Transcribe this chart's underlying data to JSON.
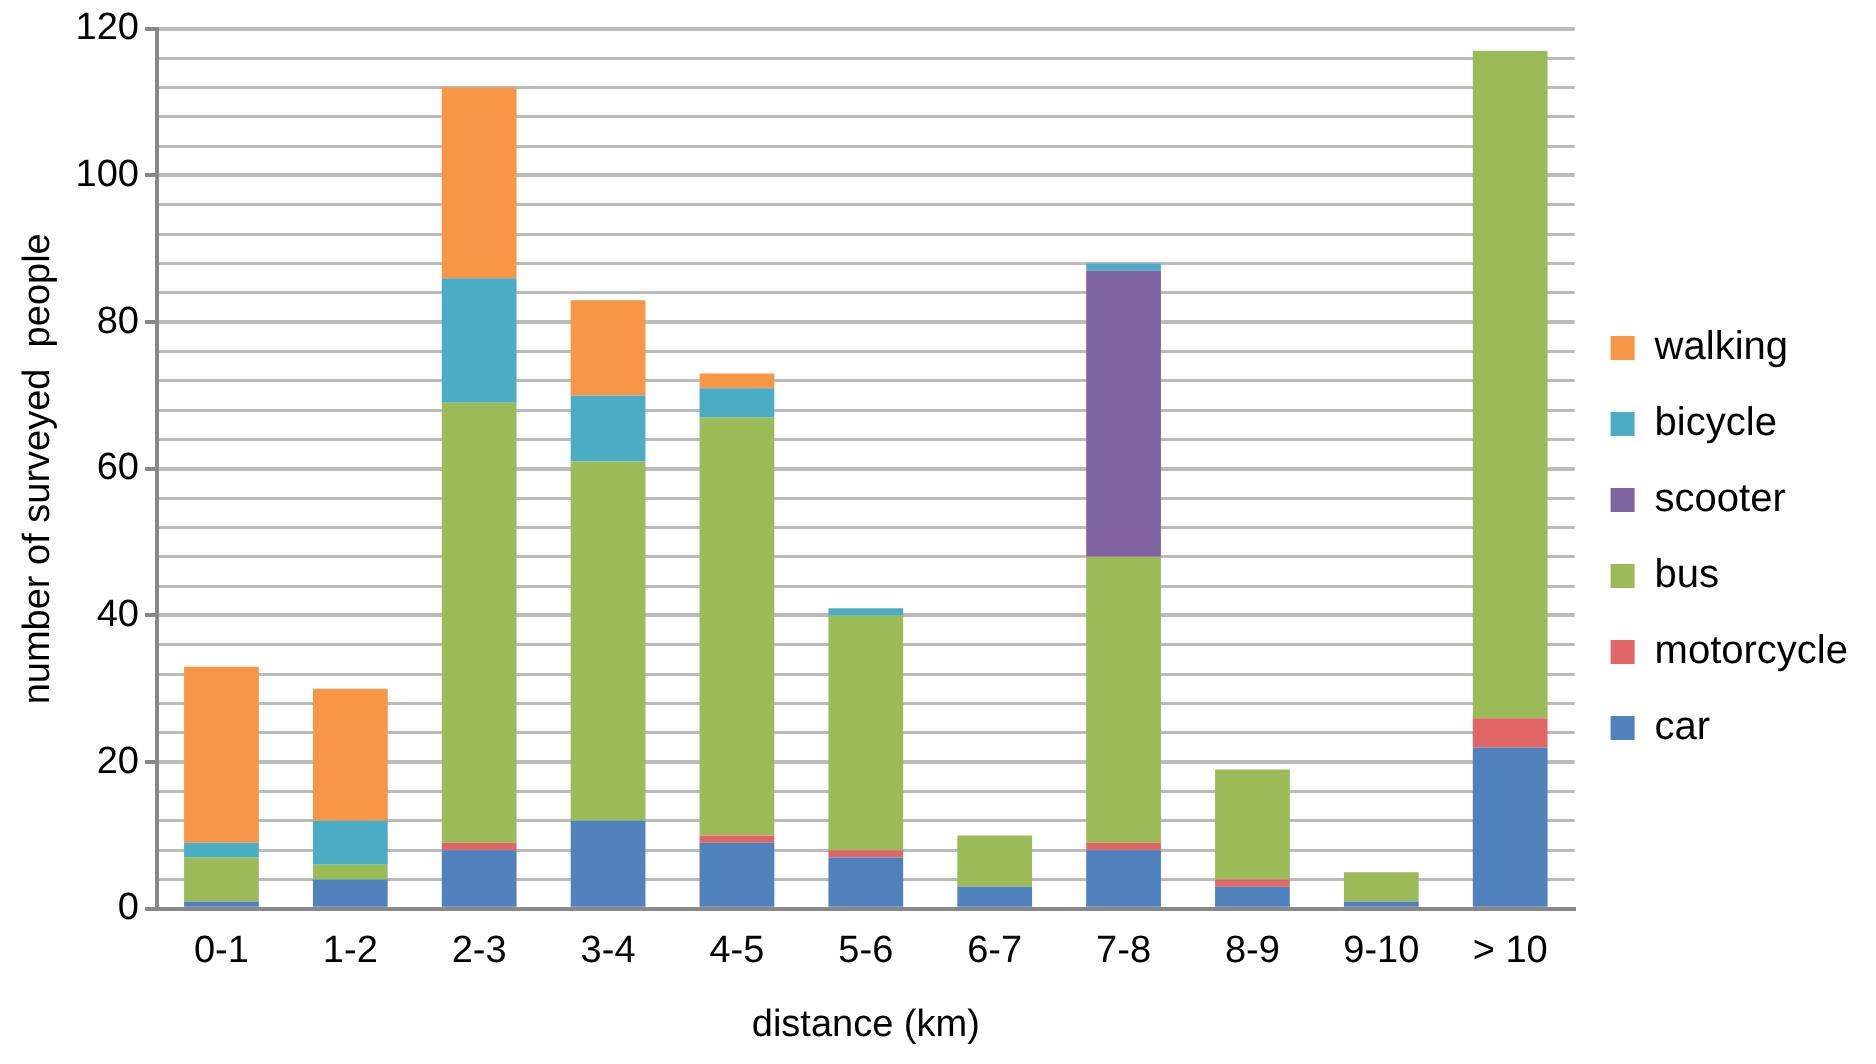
{
  "chart_data": {
    "type": "bar",
    "stacked": true,
    "xlabel": "distance (km)",
    "ylabel": "number of surveyed  people",
    "categories": [
      "0-1",
      "1-2",
      "2-3",
      "3-4",
      "4-5",
      "5-6",
      "6-7",
      "7-8",
      "8-9",
      "9-10",
      "> 10"
    ],
    "series": [
      {
        "name": "car",
        "color": "#4f81bd",
        "values": [
          1,
          4,
          8,
          12,
          9,
          7,
          3,
          8,
          3,
          1,
          22
        ]
      },
      {
        "name": "motorcycle",
        "color": "#e06666",
        "values": [
          0,
          0,
          1,
          0,
          1,
          1,
          0,
          1,
          1,
          0,
          4
        ]
      },
      {
        "name": "bus",
        "color": "#9bbb59",
        "values": [
          6,
          2,
          60,
          49,
          57,
          32,
          7,
          39,
          15,
          4,
          91
        ]
      },
      {
        "name": "scooter",
        "color": "#8064a2",
        "values": [
          0,
          0,
          0,
          0,
          0,
          0,
          0,
          39,
          0,
          0,
          0
        ]
      },
      {
        "name": "bicycle",
        "color": "#4bacc6",
        "values": [
          2,
          6,
          17,
          9,
          4,
          1,
          0,
          1,
          0,
          0,
          0
        ]
      },
      {
        "name": "walking",
        "color": "#f79646",
        "values": [
          24,
          18,
          26,
          13,
          2,
          0,
          0,
          0,
          0,
          0,
          0
        ]
      }
    ],
    "ylim": [
      0,
      120
    ],
    "yticks": [
      0,
      {
        "value": 4,
        "label": null
      },
      {
        "value": 8,
        "label": null
      },
      {
        "value": 12,
        "label": null
      },
      {
        "value": 16,
        "label": null
      },
      20,
      {
        "value": 24,
        "label": null
      },
      {
        "value": 28,
        "label": null
      },
      {
        "value": 32,
        "label": null
      },
      {
        "value": 36,
        "label": null
      },
      40,
      {
        "value": 44,
        "label": null
      },
      {
        "value": 48,
        "label": null
      },
      {
        "value": 52,
        "label": null
      },
      {
        "value": 56,
        "label": null
      },
      60,
      {
        "value": 64,
        "label": null
      },
      {
        "value": 68,
        "label": null
      },
      {
        "value": 72,
        "label": null
      },
      {
        "value": 76,
        "label": null
      },
      80,
      {
        "value": 84,
        "label": null
      },
      {
        "value": 88,
        "label": null
      },
      {
        "value": 92,
        "label": null
      },
      {
        "value": 96,
        "label": null
      },
      100,
      {
        "value": 104,
        "label": null
      },
      {
        "value": 108,
        "label": null
      },
      {
        "value": 112,
        "label": null
      },
      {
        "value": 116,
        "label": null
      },
      120
    ],
    "grid": "y",
    "legend": "right"
  }
}
